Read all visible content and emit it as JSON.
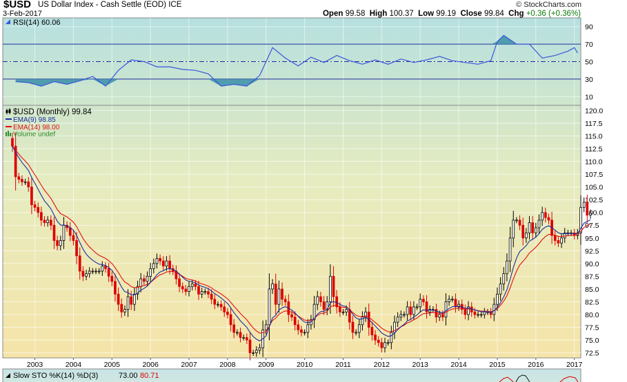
{
  "header": {
    "ticker": "$USD",
    "name": "US Dollar Index - Cash Settle (EOD)",
    "exchange": "ICE",
    "date": "3-Feb-2017",
    "brand": "© StockCharts.com",
    "open_label": "Open",
    "open": "99.58",
    "high_label": "High",
    "high": "100.37",
    "low_label": "Low",
    "low": "99.19",
    "close_label": "Close",
    "close": "99.84",
    "chg_label": "Chg",
    "chg": "+0.36 (+0.36%)"
  },
  "colors": {
    "up": "#000000",
    "down": "#dd0000",
    "ema9": "#1a2fa0",
    "ema14": "#e01010",
    "rsi": "#3a55dd",
    "rsi_fill": "#3b8fa8",
    "volume": "#2e8b2e"
  },
  "chart_data": [
    {
      "type": "line",
      "legend": "RSI(14) 60.06",
      "ylim": [
        0,
        100
      ],
      "yticks": [
        10,
        30,
        50,
        70,
        90
      ],
      "reference_lines": [
        30,
        50,
        70
      ],
      "x": [
        "2002-07",
        "2002-11",
        "2003-03",
        "2003-07",
        "2003-11",
        "2004-03",
        "2004-07",
        "2004-11",
        "2005-03",
        "2005-07",
        "2005-11",
        "2006-03",
        "2006-07",
        "2006-11",
        "2007-03",
        "2007-07",
        "2007-11",
        "2008-03",
        "2008-07",
        "2008-11",
        "2009-03",
        "2009-07",
        "2009-11",
        "2010-03",
        "2010-07",
        "2010-11",
        "2011-03",
        "2011-07",
        "2011-11",
        "2012-03",
        "2012-07",
        "2012-11",
        "2013-03",
        "2013-07",
        "2013-11",
        "2014-03",
        "2014-07",
        "2014-11",
        "2015-01",
        "2015-03",
        "2015-07",
        "2015-11",
        "2016-03",
        "2016-07",
        "2016-11",
        "2017-01",
        "2017-02"
      ],
      "values": [
        27,
        26,
        22,
        27,
        24,
        28,
        33,
        22,
        40,
        52,
        50,
        44,
        44,
        41,
        40,
        36,
        22,
        24,
        22,
        34,
        66,
        54,
        45,
        55,
        49,
        57,
        51,
        47,
        52,
        47,
        53,
        49,
        52,
        56,
        51,
        49,
        47,
        51,
        73,
        80,
        70,
        70,
        54,
        57,
        62,
        66,
        60
      ]
    },
    {
      "type": "candlestick",
      "legend": [
        "$USD (Monthly) 99.84",
        "EMA(9) 98.85",
        "EMA(14) 98.00",
        "Volume undef"
      ],
      "ylim": [
        71.5,
        121
      ],
      "yticks": [
        "120.0",
        "117.5",
        "115.0",
        "112.5",
        "110.0",
        "107.5",
        "105.0",
        "102.5",
        "100.0",
        "97.5",
        "95.0",
        "92.5",
        "90.0",
        "87.5",
        "85.0",
        "82.5",
        "80.0",
        "77.5",
        "75.0",
        "72.5"
      ],
      "xtick_labels": [
        "2003",
        "2004",
        "2005",
        "2006",
        "2007",
        "2008",
        "2009",
        "2010",
        "2011",
        "2012",
        "2013",
        "2014",
        "2015",
        "2016",
        "2017"
      ],
      "xlim": [
        "2002-03",
        "2017-03"
      ],
      "start": "2002-06",
      "close": [
        113.0,
        107.0,
        106.5,
        106.0,
        106.0,
        105.0,
        101.5,
        101.0,
        100.0,
        98.5,
        98.0,
        98.5,
        97.5,
        94.5,
        93.5,
        94.5,
        97.5,
        97.0,
        95.5,
        94.5,
        91.5,
        88.5,
        87.5,
        88.0,
        88.5,
        88.5,
        88.5,
        88.5,
        89.5,
        89.0,
        87.5,
        86.5,
        84.0,
        82.0,
        80.5,
        81.0,
        83.5,
        82.0,
        84.0,
        85.5,
        87.0,
        86.5,
        87.5,
        89.0,
        90.0,
        91.0,
        90.5,
        89.5,
        90.5,
        89.0,
        88.5,
        87.0,
        85.5,
        85.0,
        84.5,
        85.5,
        86.0,
        85.5,
        84.0,
        84.5,
        84.5,
        84.0,
        83.0,
        82.0,
        82.0,
        81.5,
        80.5,
        80.0,
        78.0,
        76.5,
        76.5,
        75.5,
        75.5,
        75.0,
        72.5,
        72.5,
        73.0,
        73.5,
        77.0,
        78.0,
        85.0,
        86.0,
        82.0,
        85.0,
        83.0,
        82.5,
        80.0,
        79.5,
        78.0,
        77.0,
        76.5,
        76.5,
        78.0,
        79.0,
        82.0,
        83.5,
        82.5,
        81.0,
        82.5,
        87.5,
        83.5,
        81.5,
        80.5,
        80.5,
        81.0,
        78.5,
        76.5,
        76.5,
        78.0,
        79.5,
        80.5,
        77.5,
        76.0,
        75.0,
        74.5,
        73.5,
        74.5,
        74.5,
        76.5,
        78.5,
        79.5,
        80.0,
        80.0,
        81.5,
        80.0,
        81.5,
        81.5,
        83.0,
        82.5,
        80.5,
        81.0,
        81.0,
        79.5,
        80.0,
        79.5,
        82.5,
        83.0,
        83.0,
        81.5,
        82.0,
        81.0,
        80.0,
        81.5,
        80.5,
        80.0,
        80.0,
        80.0,
        80.5,
        80.5,
        80.0,
        82.0,
        84.0,
        86.0,
        88.0,
        90.5,
        95.0,
        98.5,
        98.5,
        97.5,
        95.0,
        96.0,
        98.0,
        96.0,
        97.0,
        98.5,
        100.0,
        99.0,
        98.5,
        95.5,
        94.5,
        94.0,
        95.0,
        96.0,
        96.0,
        96.0,
        95.5,
        96.0,
        101.0,
        102.0,
        99.5,
        99.84
      ]
    }
  ],
  "sto_panel": {
    "legend_name": "Slow STO %K(14) %D(3)",
    "k_value": "73.00",
    "d_value": "80.71"
  }
}
